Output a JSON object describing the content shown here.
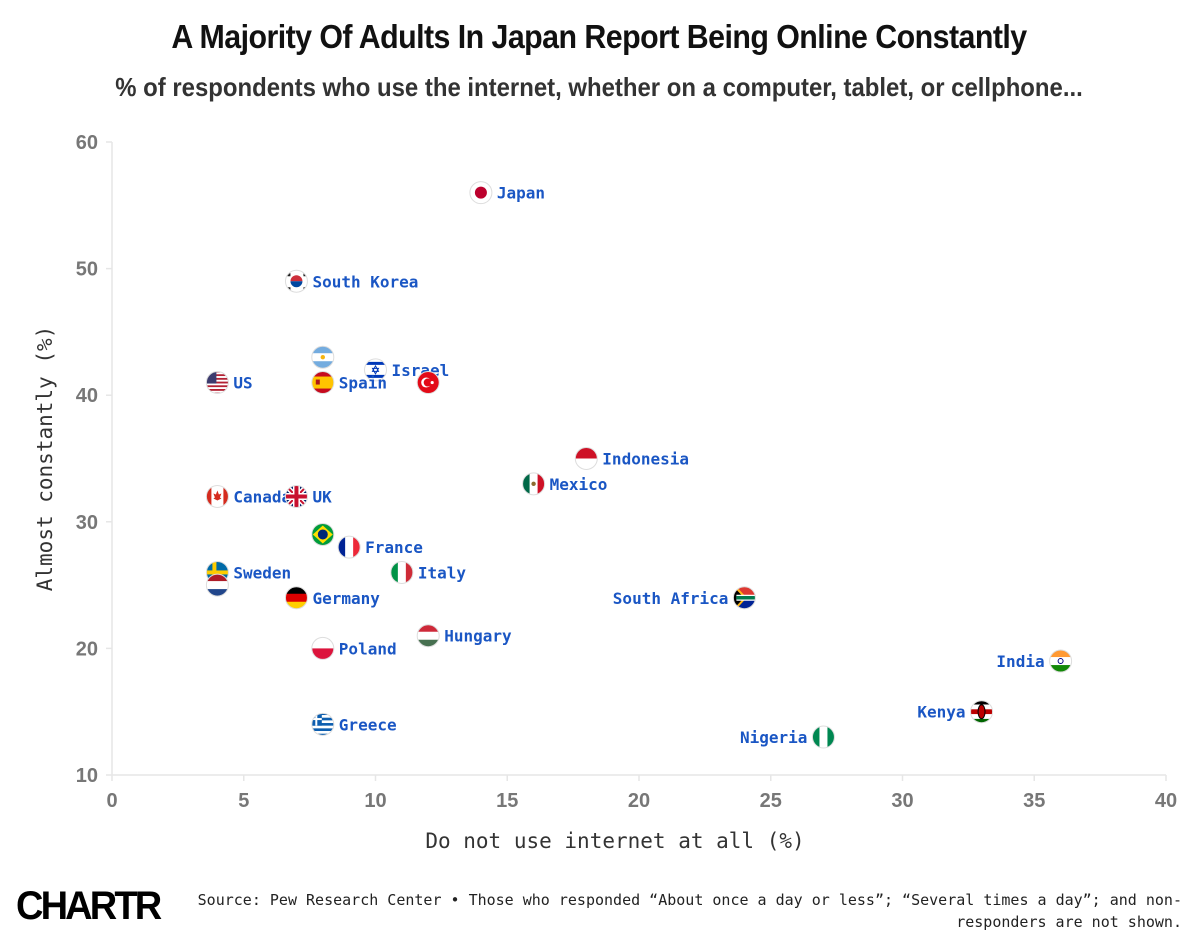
{
  "title": "A Majority Of Adults In Japan Report Being Online Constantly",
  "subtitle": "% of respondents who use the internet, whether on a computer, tablet, or cellphone...",
  "footer": {
    "logo": "CHARTR",
    "source": "Source: Pew Research Center • Those who responded “About once a day or less”; “Several times a day”; and non-responders are not shown."
  },
  "colors": {
    "label": "#1a56c4",
    "grid": "#e6e6e6",
    "tick": "#777777",
    "axis_title": "#333333"
  },
  "chart_data": {
    "type": "scatter",
    "title": "A Majority Of Adults In Japan Report Being Online Constantly",
    "xlabel": "Do not use internet at all (%)",
    "ylabel": "Almost constantly (%)",
    "xlim": [
      0,
      40
    ],
    "ylim": [
      10,
      60
    ],
    "xticks": [
      0,
      5,
      10,
      15,
      20,
      25,
      30,
      35,
      40
    ],
    "yticks": [
      10,
      20,
      30,
      40,
      50,
      60
    ],
    "points": [
      {
        "name": "Japan",
        "x": 14,
        "y": 56,
        "flag": "japan-flag",
        "label": "Japan",
        "label_side": "right"
      },
      {
        "name": "South Korea",
        "x": 7,
        "y": 49,
        "flag": "south-korea-flag",
        "label": "South Korea",
        "label_side": "right"
      },
      {
        "name": "Argentina",
        "x": 8,
        "y": 43,
        "flag": "argentina-flag",
        "label": "",
        "label_side": "right"
      },
      {
        "name": "Israel",
        "x": 10,
        "y": 42,
        "flag": "israel-flag",
        "label": "Israel",
        "label_side": "right"
      },
      {
        "name": "US",
        "x": 4,
        "y": 41,
        "flag": "us-flag",
        "label": "US",
        "label_side": "right"
      },
      {
        "name": "Spain",
        "x": 8,
        "y": 41,
        "flag": "spain-flag",
        "label": "Spain",
        "label_side": "right"
      },
      {
        "name": "Turkey",
        "x": 12,
        "y": 41,
        "flag": "turkey-flag",
        "label": "",
        "label_side": "right"
      },
      {
        "name": "Indonesia",
        "x": 18,
        "y": 35,
        "flag": "indonesia-flag",
        "label": "Indonesia",
        "label_side": "right"
      },
      {
        "name": "Mexico",
        "x": 16,
        "y": 33,
        "flag": "mexico-flag",
        "label": "Mexico",
        "label_side": "right"
      },
      {
        "name": "Canada",
        "x": 4,
        "y": 32,
        "flag": "canada-flag",
        "label": "Canada",
        "label_side": "right"
      },
      {
        "name": "UK",
        "x": 7,
        "y": 32,
        "flag": "uk-flag",
        "label": "UK",
        "label_side": "right"
      },
      {
        "name": "Brazil",
        "x": 8,
        "y": 29,
        "flag": "brazil-flag",
        "label": "",
        "label_side": "right"
      },
      {
        "name": "France",
        "x": 9,
        "y": 28,
        "flag": "france-flag",
        "label": "France",
        "label_side": "right"
      },
      {
        "name": "Sweden",
        "x": 4,
        "y": 26,
        "flag": "sweden-flag",
        "label": "Sweden",
        "label_side": "right"
      },
      {
        "name": "Netherlands",
        "x": 4,
        "y": 25,
        "flag": "netherlands-flag",
        "label": "",
        "label_side": "right"
      },
      {
        "name": "Italy",
        "x": 11,
        "y": 26,
        "flag": "italy-flag",
        "label": "Italy",
        "label_side": "right"
      },
      {
        "name": "Germany",
        "x": 7,
        "y": 24,
        "flag": "germany-flag",
        "label": "Germany",
        "label_side": "right"
      },
      {
        "name": "South Africa",
        "x": 24,
        "y": 24,
        "flag": "south-africa-flag",
        "label": "South Africa",
        "label_side": "left"
      },
      {
        "name": "Hungary",
        "x": 12,
        "y": 21,
        "flag": "hungary-flag",
        "label": "Hungary",
        "label_side": "right"
      },
      {
        "name": "Poland",
        "x": 8,
        "y": 20,
        "flag": "poland-flag",
        "label": "Poland",
        "label_side": "right"
      },
      {
        "name": "India",
        "x": 36,
        "y": 19,
        "flag": "india-flag",
        "label": "India",
        "label_side": "left"
      },
      {
        "name": "Kenya",
        "x": 33,
        "y": 15,
        "flag": "kenya-flag",
        "label": "Kenya",
        "label_side": "left"
      },
      {
        "name": "Greece",
        "x": 8,
        "y": 14,
        "flag": "greece-flag",
        "label": "Greece",
        "label_side": "right"
      },
      {
        "name": "Nigeria",
        "x": 27,
        "y": 13,
        "flag": "nigeria-flag",
        "label": "Nigeria",
        "label_side": "left"
      }
    ]
  }
}
